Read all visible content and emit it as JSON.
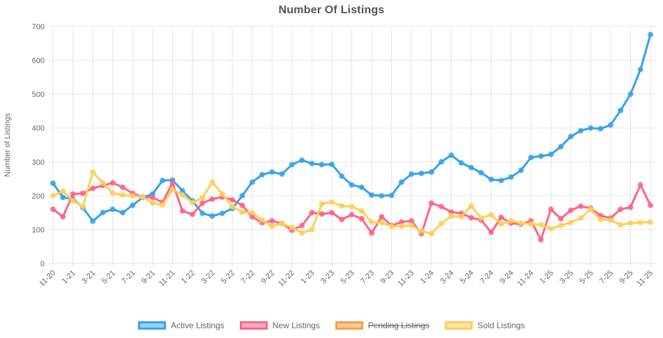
{
  "page": {
    "background": "#ffffff"
  },
  "chart_data": {
    "type": "line",
    "title": "Number Of Listings",
    "ylabel": "Number of Listings",
    "xlabel": "",
    "ylim": [
      0,
      700
    ],
    "ytick_step": 100,
    "grid": true,
    "legend_position": "bottom",
    "xtick_every": 2,
    "xtick_rotation": -45,
    "x": [
      "11-20",
      "12-20",
      "1-21",
      "2-21",
      "3-21",
      "4-21",
      "5-21",
      "6-21",
      "7-21",
      "8-21",
      "9-21",
      "10-21",
      "11-21",
      "12-21",
      "1-22",
      "2-22",
      "3-22",
      "4-22",
      "5-22",
      "6-22",
      "7-22",
      "8-22",
      "9-22",
      "10-22",
      "11-22",
      "12-22",
      "1-23",
      "2-23",
      "3-23",
      "4-23",
      "5-23",
      "6-23",
      "7-23",
      "8-23",
      "9-23",
      "10-23",
      "11-23",
      "12-23",
      "1-24",
      "2-24",
      "3-24",
      "4-24",
      "5-24",
      "6-24",
      "7-24",
      "8-24",
      "9-24",
      "10-24",
      "11-24",
      "12-24",
      "1-25",
      "2-25",
      "3-25",
      "4-25",
      "5-25",
      "6-25",
      "7-25",
      "8-25",
      "9-25",
      "10-25",
      "11-25"
    ],
    "series": [
      {
        "name": "Active Listings",
        "color": "#36A2EB",
        "fill_light": "#9BCFF5",
        "hidden": false,
        "values": [
          237,
          195,
          190,
          165,
          125,
          150,
          160,
          150,
          172,
          195,
          205,
          245,
          246,
          215,
          185,
          148,
          140,
          148,
          162,
          200,
          240,
          262,
          270,
          264,
          292,
          305,
          295,
          292,
          293,
          258,
          232,
          225,
          202,
          200,
          201,
          240,
          264,
          266,
          270,
          300,
          320,
          297,
          283,
          268,
          248,
          245,
          255,
          275,
          313,
          317,
          322,
          345,
          375,
          392,
          400,
          398,
          409,
          452,
          500,
          573,
          676
        ]
      },
      {
        "name": "New Listings",
        "color": "#FF6384",
        "fill_light": "#FFB1C1",
        "hidden": false,
        "values": [
          160,
          138,
          205,
          207,
          222,
          230,
          238,
          225,
          207,
          196,
          195,
          180,
          238,
          155,
          145,
          178,
          190,
          196,
          188,
          172,
          138,
          120,
          126,
          118,
          98,
          112,
          150,
          146,
          150,
          130,
          144,
          132,
          90,
          138,
          112,
          122,
          126,
          88,
          178,
          168,
          152,
          148,
          135,
          128,
          92,
          136,
          119,
          116,
          126,
          70,
          160,
          132,
          157,
          169,
          163,
          141,
          134,
          160,
          166,
          232,
          172
        ]
      },
      {
        "name": "Pending Listings",
        "color": "#FF9F40",
        "fill_light": "#FFCF9F",
        "hidden": true,
        "values": []
      },
      {
        "name": "Sold Listings",
        "color": "#FFCE56",
        "fill_light": "#FFE6AA",
        "hidden": false,
        "values": [
          200,
          213,
          185,
          168,
          270,
          238,
          208,
          202,
          200,
          196,
          178,
          173,
          218,
          202,
          180,
          194,
          240,
          205,
          168,
          152,
          150,
          128,
          110,
          118,
          106,
          90,
          100,
          176,
          181,
          170,
          168,
          155,
          122,
          120,
          110,
          110,
          112,
          96,
          88,
          118,
          140,
          138,
          170,
          134,
          144,
          116,
          126,
          119,
          117,
          114,
          103,
          112,
          121,
          134,
          160,
          130,
          128,
          114,
          119,
          121,
          122
        ]
      }
    ],
    "colors": {
      "grid": "#e5e5e5",
      "tick_text": "#666666",
      "title_text": "#555555",
      "background": "#ffffff"
    }
  }
}
